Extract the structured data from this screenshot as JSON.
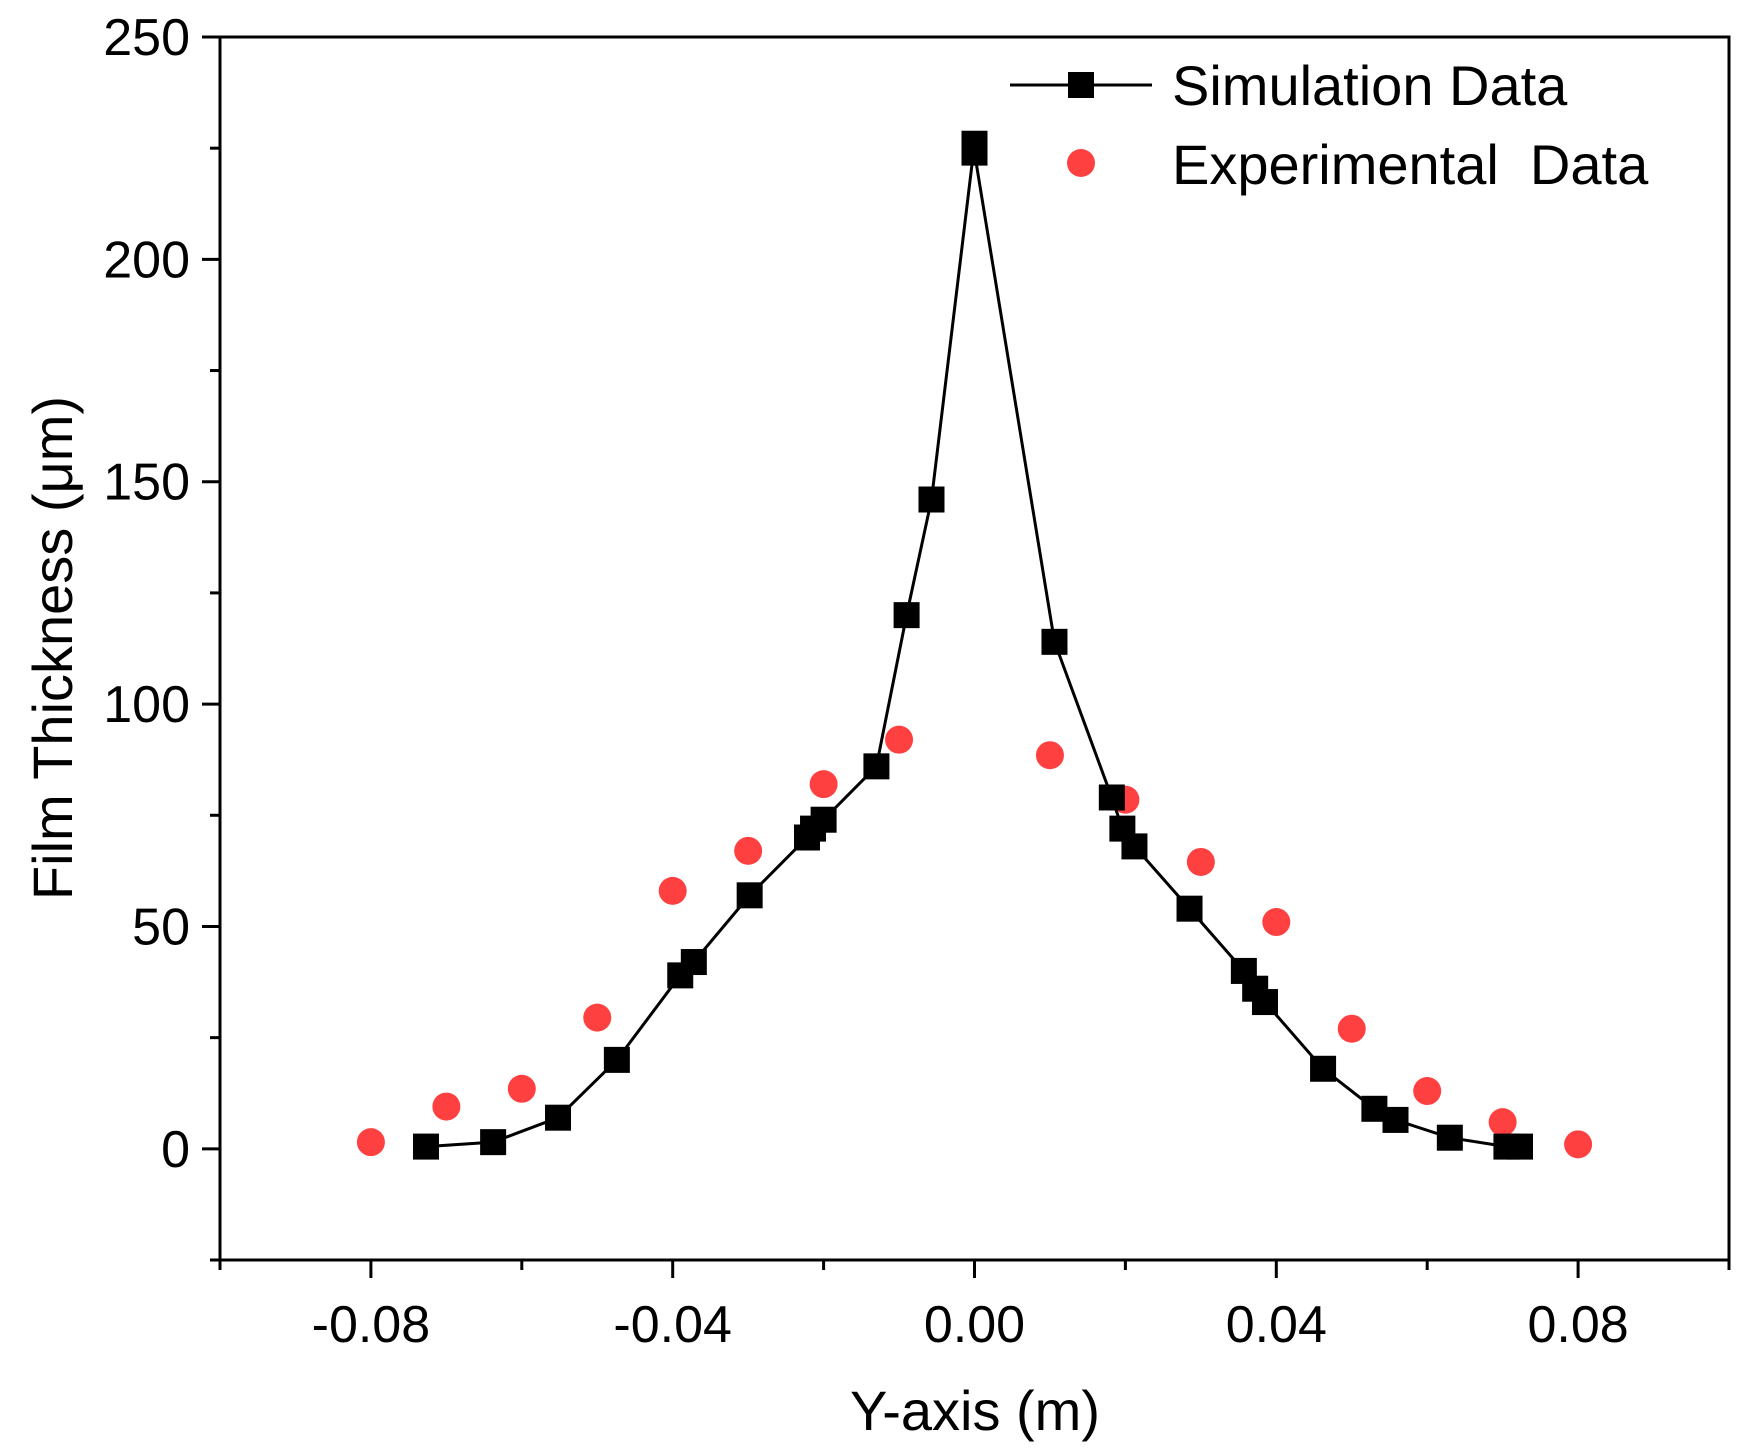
{
  "chart_data": {
    "type": "scatter",
    "xlabel": "Y-axis (m)",
    "ylabel": "Film Thickness (μm)",
    "xlim": [
      -0.1,
      0.1
    ],
    "ylim": [
      -25,
      250
    ],
    "xticks": [
      -0.08,
      -0.04,
      0.0,
      0.04,
      0.08
    ],
    "xtick_labels": [
      "-0.08",
      "-0.04",
      "0.00",
      "0.04",
      "0.08"
    ],
    "yticks": [
      0,
      50,
      100,
      150,
      200,
      250
    ],
    "ytick_labels": [
      "0",
      "50",
      "100",
      "150",
      "200",
      "250"
    ],
    "grid": false,
    "legend_position": "top-right",
    "series": [
      {
        "name": "Simulation Data",
        "style": "line-square",
        "color": "#000000",
        "x": [
          -0.0727,
          -0.0638,
          -0.0552,
          -0.0474,
          -0.039,
          -0.0372,
          -0.0298,
          -0.0222,
          -0.0214,
          -0.02,
          -0.013,
          -0.009,
          -0.0057,
          0.0,
          0.0,
          0.0106,
          0.0182,
          0.0196,
          0.0212,
          0.0285,
          0.0357,
          0.0372,
          0.0385,
          0.0462,
          0.053,
          0.0558,
          0.063,
          0.0705,
          0.0723
        ],
        "y": [
          0.5,
          1.5,
          7,
          20,
          39,
          42,
          57,
          70,
          72,
          74,
          86,
          120,
          146,
          226,
          224,
          114,
          79,
          72,
          68,
          54,
          40,
          36,
          33,
          18,
          9,
          6.5,
          2.5,
          0.5,
          0.5
        ]
      },
      {
        "name": "Experimental  Data",
        "style": "circle",
        "color": "#ff4040",
        "x": [
          -0.08,
          -0.07,
          -0.06,
          -0.05,
          -0.04,
          -0.03,
          -0.02,
          -0.01,
          0.01,
          0.02,
          0.03,
          0.04,
          0.05,
          0.06,
          0.07,
          0.08
        ],
        "y": [
          1.5,
          9.5,
          13.5,
          29.5,
          58,
          67,
          82,
          92,
          88.5,
          78.5,
          64.5,
          51,
          27,
          13,
          6,
          1
        ]
      }
    ]
  }
}
